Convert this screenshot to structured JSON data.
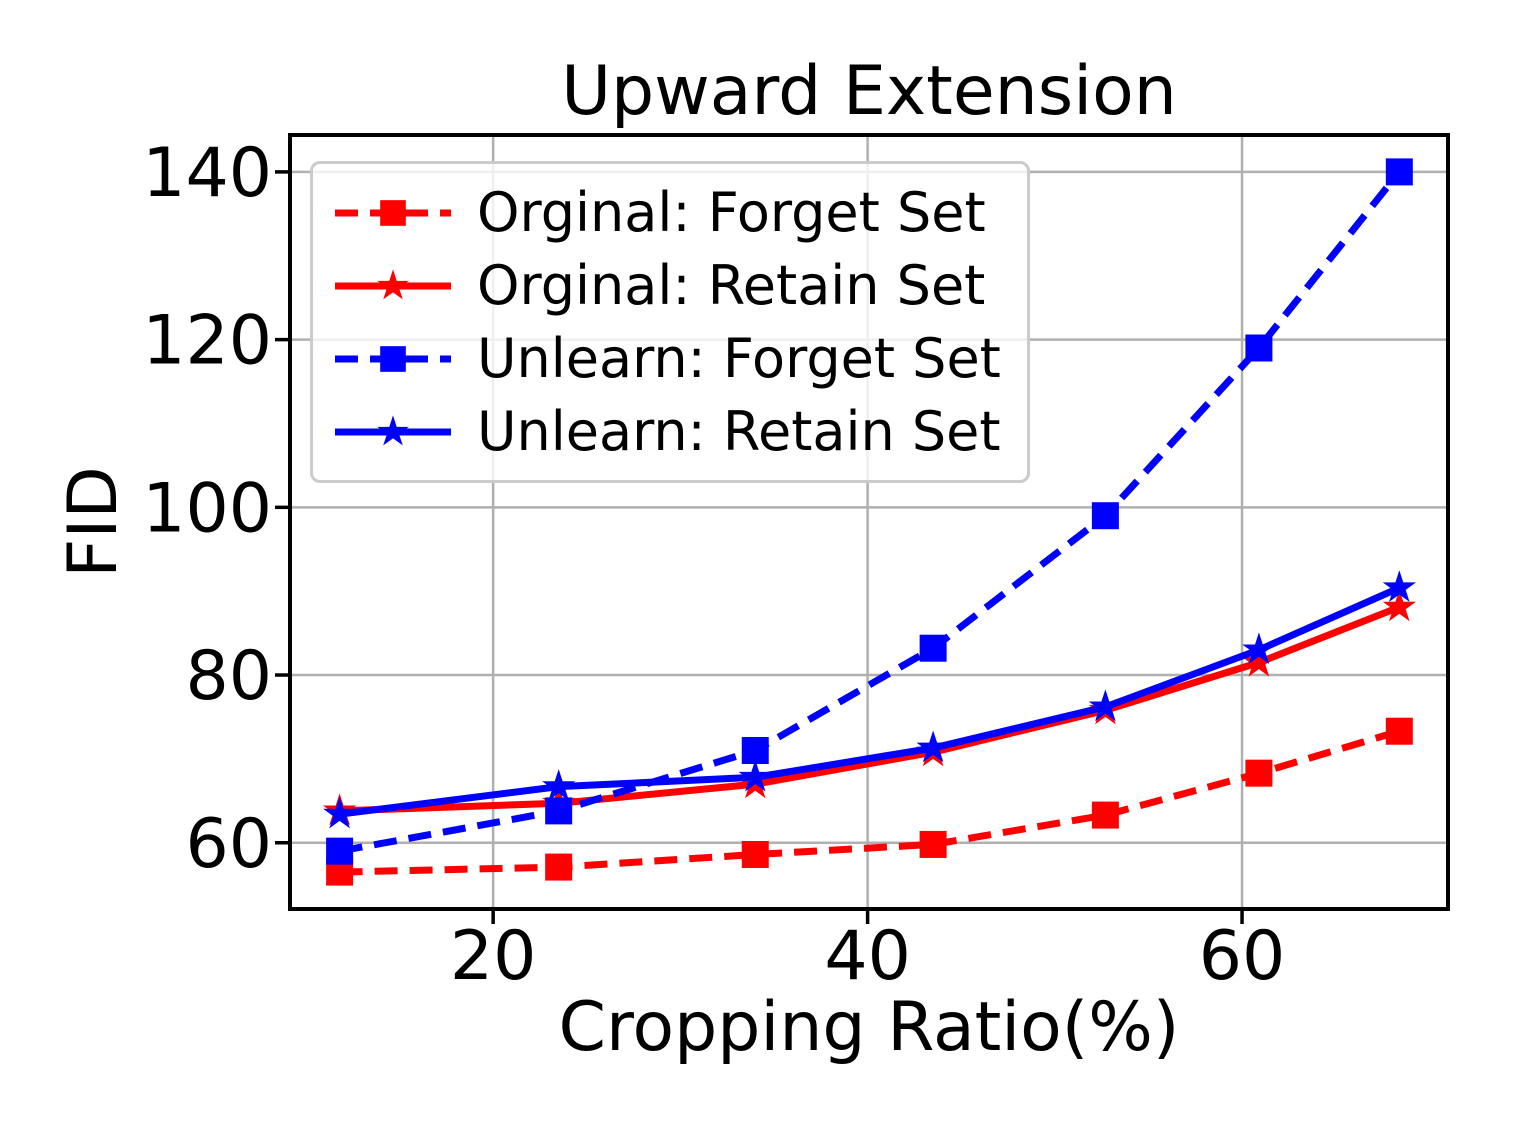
{
  "chart_data": {
    "type": "line",
    "title": "Upward Extension",
    "xlabel": "Cropping Ratio(%)",
    "ylabel": "FID",
    "xlim": [
      9.15,
      71.0
    ],
    "ylim": [
      52.1,
      144.4
    ],
    "xticks": [
      20,
      40,
      60
    ],
    "yticks": [
      60,
      80,
      100,
      120,
      140
    ],
    "grid": true,
    "legend_position": "upper left",
    "x": [
      11.8,
      23.5,
      34.0,
      43.5,
      52.7,
      60.9,
      68.4
    ],
    "series": [
      {
        "name": "Orginal: Forget Set",
        "color": "#ff0000",
        "linestyle": "dashed",
        "marker": "square",
        "values": [
          56.5,
          57.1,
          58.6,
          59.8,
          63.3,
          68.3,
          73.3
        ]
      },
      {
        "name": "Orginal: Retain Set",
        "color": "#ff0000",
        "linestyle": "solid",
        "marker": "star",
        "values": [
          63.8,
          64.7,
          67.0,
          70.8,
          75.8,
          81.5,
          88.1
        ]
      },
      {
        "name": "Unlearn: Forget Set",
        "color": "#0000ff",
        "linestyle": "dashed",
        "marker": "square",
        "values": [
          59.0,
          63.8,
          71.0,
          83.2,
          99.0,
          119.0,
          140.0
        ]
      },
      {
        "name": "Unlearn: Retain Set",
        "color": "#0000ff",
        "linestyle": "solid",
        "marker": "star",
        "values": [
          63.4,
          66.7,
          67.8,
          71.3,
          76.2,
          83.0,
          90.4
        ]
      }
    ],
    "style": {
      "grid_color": "#b0b0b0",
      "spine_color": "#000000",
      "background": "#ffffff"
    }
  }
}
